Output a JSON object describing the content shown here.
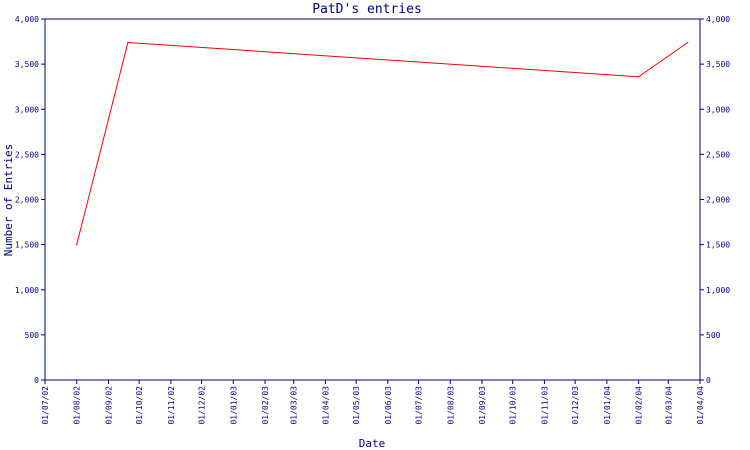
{
  "chart_data": {
    "type": "line",
    "title": "PatD's entries",
    "xlabel": "Date",
    "ylabel": "Number of Entries",
    "x_ticks": [
      "01/07/02",
      "01/08/02",
      "01/09/02",
      "01/10/02",
      "01/11/02",
      "01/12/02",
      "01/01/03",
      "01/02/03",
      "01/03/03",
      "01/04/03",
      "01/05/03",
      "01/06/03",
      "01/07/03",
      "01/08/03",
      "01/09/03",
      "01/10/03",
      "01/11/03",
      "01/12/03",
      "01/01/04",
      "01/02/04",
      "01/03/04",
      "01/04/04"
    ],
    "y_ticks": [
      "0",
      "500",
      "1,000",
      "1,500",
      "2,000",
      "2,500",
      "3,000",
      "3,500",
      "4,000"
    ],
    "ylim": [
      0,
      4000
    ],
    "xlim": [
      "01/07/02",
      "01/04/04"
    ],
    "grid": false,
    "series": [
      {
        "color": "#ff0000",
        "points": [
          {
            "x": "01/08/02",
            "y": 1500
          },
          {
            "x": "20/09/02",
            "y": 3740
          },
          {
            "x": "01/02/04",
            "y": 3360
          },
          {
            "x": "20/03/04",
            "y": 3740
          }
        ]
      }
    ]
  },
  "colors": {
    "axis": "#000080",
    "text": "#000080",
    "line": "#ff0000"
  }
}
